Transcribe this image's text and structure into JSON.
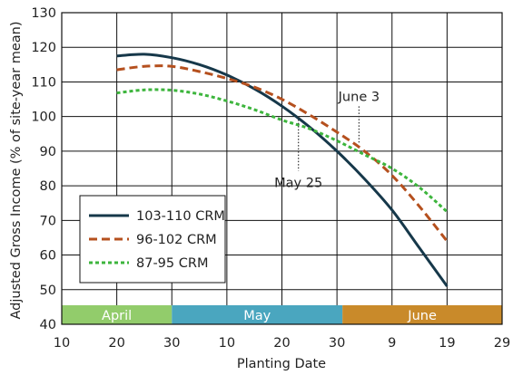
{
  "chart_data": {
    "type": "line",
    "xlabel": "Planting Date",
    "ylabel": "Adjusted Gross Income (% of site-year mean)",
    "x_ticks": [
      "10",
      "20",
      "30",
      "10",
      "20",
      "30",
      "9",
      "19",
      "29"
    ],
    "x_tick_dates": [
      "Apr 10",
      "Apr 20",
      "Apr 30",
      "May 10",
      "May 20",
      "May 30",
      "Jun 9",
      "Jun 19",
      "Jun 29"
    ],
    "xlim": [
      "Apr 10",
      "Jun 29"
    ],
    "ylim": [
      40,
      130
    ],
    "y_ticks": [
      40,
      50,
      60,
      70,
      80,
      90,
      100,
      110,
      120,
      130
    ],
    "grid": true,
    "months": [
      {
        "label": "April",
        "start": "Apr 10",
        "end": "Apr 30",
        "color": "#92cc6b"
      },
      {
        "label": "May",
        "start": "Apr 30",
        "end": "May 31",
        "color": "#4aa6bf"
      },
      {
        "label": "June",
        "start": "May 31",
        "end": "Jun 29",
        "color": "#c98a2a"
      }
    ],
    "series": [
      {
        "name": "103-110 CRM",
        "color": "#16384a",
        "dash": "solid",
        "x": [
          "Apr 20",
          "Apr 25",
          "Apr 30",
          "May 5",
          "May 10",
          "May 15",
          "May 20",
          "May 25",
          "May 30",
          "Jun 4",
          "Jun 9",
          "Jun 14",
          "Jun 19"
        ],
        "y": [
          117.5,
          118,
          117,
          115,
          112,
          108,
          103,
          97,
          90,
          82,
          73,
          62,
          51
        ]
      },
      {
        "name": "96-102 CRM",
        "color": "#b5501e",
        "dash": "long",
        "x": [
          "Apr 20",
          "Apr 25",
          "Apr 30",
          "May 5",
          "May 10",
          "May 15",
          "May 20",
          "May 25",
          "May 30",
          "Jun 4",
          "Jun 9",
          "Jun 14",
          "Jun 19"
        ],
        "y": [
          113.5,
          114.5,
          114.5,
          113,
          111,
          108.5,
          105,
          100.5,
          95.5,
          90,
          83,
          74,
          64
        ]
      },
      {
        "name": "87-95 CRM",
        "color": "#3db53d",
        "dash": "short",
        "x": [
          "Apr 20",
          "Apr 25",
          "Apr 30",
          "May 5",
          "May 10",
          "May 15",
          "May 20",
          "May 25",
          "May 30",
          "Jun 4",
          "Jun 9",
          "Jun 14",
          "Jun 19"
        ],
        "y": [
          106.8,
          107.7,
          107.6,
          106.5,
          104.5,
          102,
          99,
          96.5,
          93,
          89,
          85,
          79.5,
          72.5
        ]
      }
    ],
    "annotations": [
      {
        "label": "May 25",
        "x": "May 23",
        "y_top": 100,
        "y_bottom": 88
      },
      {
        "label": "June 3",
        "x": "Jun 3",
        "y_top": 104,
        "y_bottom": 92
      }
    ],
    "legend_position": "lower-left"
  }
}
